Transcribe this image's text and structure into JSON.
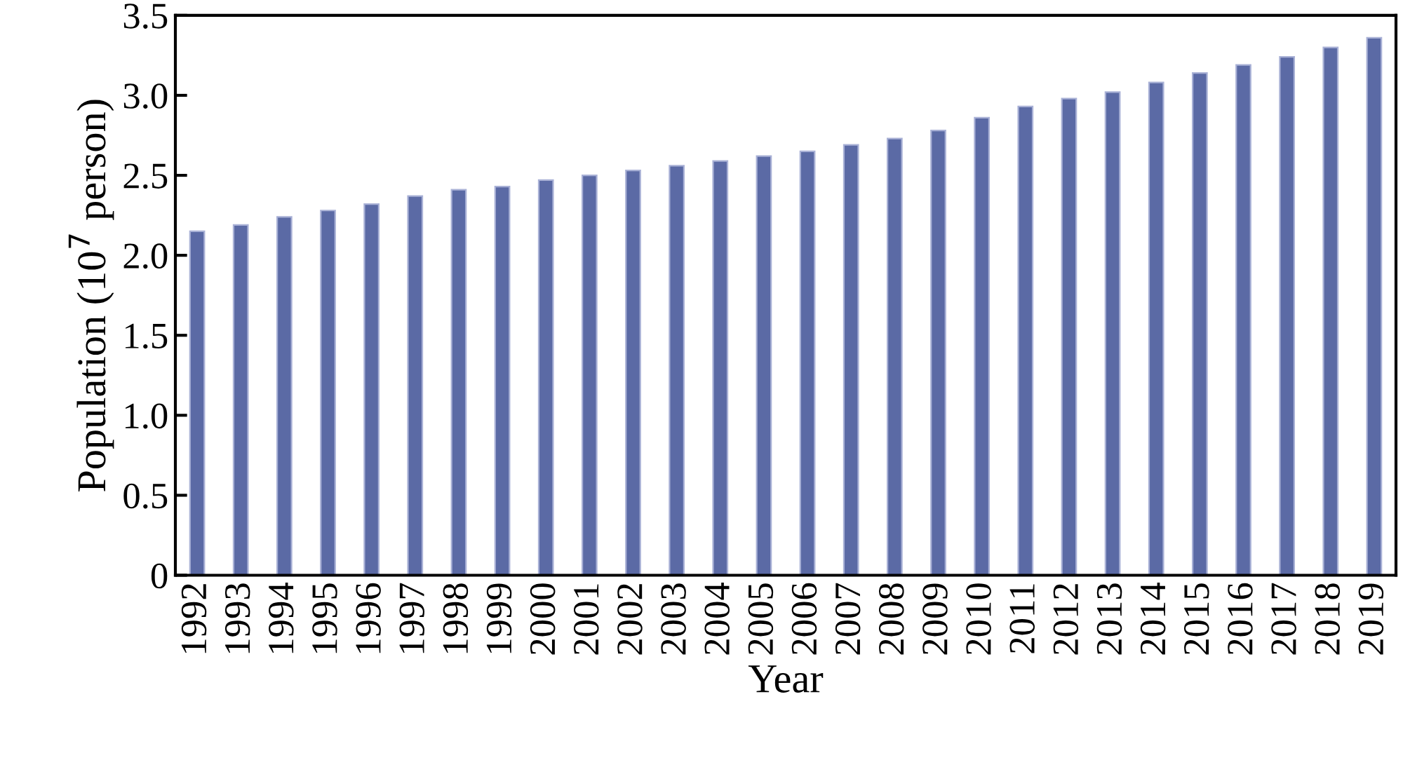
{
  "chart_data": {
    "type": "bar",
    "xlabel": "Year",
    "ylabel": "Population (10$^{7}$ person)",
    "categories": [
      "1992",
      "1993",
      "1994",
      "1995",
      "1996",
      "1997",
      "1998",
      "1999",
      "2000",
      "2001",
      "2002",
      "2003",
      "2004",
      "2005",
      "2006",
      "2007",
      "2008",
      "2009",
      "2010",
      "2011",
      "2012",
      "2013",
      "2014",
      "2015",
      "2016",
      "2017",
      "2018",
      "2019"
    ],
    "values": [
      2.15,
      2.19,
      2.24,
      2.28,
      2.32,
      2.37,
      2.41,
      2.43,
      2.47,
      2.5,
      2.53,
      2.56,
      2.59,
      2.62,
      2.65,
      2.69,
      2.73,
      2.78,
      2.86,
      2.93,
      2.98,
      3.02,
      3.08,
      3.14,
      3.19,
      3.24,
      3.3,
      3.36
    ],
    "color": "#5b6aa5",
    "ylim": [
      0,
      3.5
    ],
    "yticks": [
      0,
      {
        "value": 0.5,
        "label": "0.5"
      },
      {
        "value": 1.0,
        "label": "1.0"
      },
      {
        "value": 1.5,
        "label": "1.5"
      },
      {
        "value": 2.0,
        "label": "2.0"
      },
      {
        "value": 2.5,
        "label": "2.5"
      },
      {
        "value": 3.0,
        "label": "3.0"
      },
      {
        "value": 3.5,
        "label": "3.5"
      }
    ],
    "grid": false,
    "legend": false
  }
}
